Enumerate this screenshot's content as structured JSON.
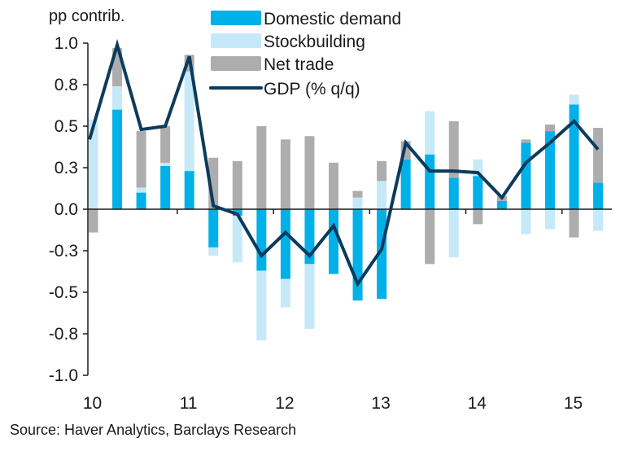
{
  "chart_data": {
    "type": "bar",
    "stacked": true,
    "title": "",
    "ylabel": "pp contrib.",
    "xlabel": "",
    "ylim": [
      -1.0,
      1.0
    ],
    "yticks": [
      1.0,
      0.75,
      0.5,
      0.25,
      0.0,
      -0.25,
      -0.5,
      -0.75,
      -1.0
    ],
    "ytick_labels": [
      "1.0",
      "0.8",
      "0.5",
      "0.3",
      "0.0",
      "-0.3",
      "-0.5",
      "-0.8",
      "-1.0"
    ],
    "categories": [
      "2010Q1",
      "2010Q2",
      "2010Q3",
      "2010Q4",
      "2011Q1",
      "2011Q2",
      "2011Q3",
      "2011Q4",
      "2012Q1",
      "2012Q2",
      "2012Q3",
      "2012Q4",
      "2013Q1",
      "2013Q2",
      "2013Q3",
      "2013Q4",
      "2014Q1",
      "2014Q2",
      "2014Q3",
      "2014Q4",
      "2015Q1",
      "2015Q2"
    ],
    "xtick_labels": [
      "10",
      "11",
      "12",
      "13",
      "14",
      "15"
    ],
    "xtick_category_index": [
      0,
      4,
      8,
      12,
      16,
      20
    ],
    "grid": false,
    "legend_position": "top-center",
    "series": [
      {
        "name": "Domestic demand",
        "kind": "bar",
        "color": "#00B0E8",
        "values": [
          0.0,
          0.6,
          0.1,
          0.26,
          0.23,
          -0.23,
          -0.04,
          -0.37,
          -0.42,
          -0.33,
          -0.39,
          -0.55,
          -0.54,
          0.3,
          0.33,
          0.19,
          0.2,
          0.05,
          0.4,
          0.47,
          0.63,
          0.16
        ]
      },
      {
        "name": "Stockbuilding",
        "kind": "bar",
        "color": "#C5E9F9",
        "values": [
          0.54,
          0.14,
          0.03,
          0.02,
          0.6,
          -0.05,
          -0.28,
          -0.42,
          -0.17,
          -0.39,
          0.0,
          0.07,
          0.17,
          0.0,
          0.26,
          -0.29,
          0.1,
          0.0,
          -0.15,
          -0.12,
          0.06,
          -0.13
        ]
      },
      {
        "name": "Net trade",
        "kind": "bar",
        "color": "#ADADAD",
        "values": [
          -0.14,
          0.23,
          0.34,
          0.22,
          0.1,
          0.31,
          0.29,
          0.5,
          0.42,
          0.44,
          0.28,
          0.04,
          0.12,
          0.11,
          -0.33,
          0.34,
          -0.09,
          0.03,
          0.02,
          0.04,
          -0.17,
          0.33
        ]
      },
      {
        "name": "GDP (% q/q)",
        "kind": "line",
        "color": "#0B3B5C",
        "values": [
          0.42,
          0.99,
          0.48,
          0.5,
          0.92,
          0.02,
          -0.03,
          -0.28,
          -0.14,
          -0.28,
          -0.1,
          -0.45,
          -0.24,
          0.4,
          0.23,
          0.23,
          0.22,
          0.07,
          0.28,
          0.4,
          0.53,
          0.36
        ]
      }
    ]
  },
  "source": "Source: Haver Analytics, Barclays Research"
}
